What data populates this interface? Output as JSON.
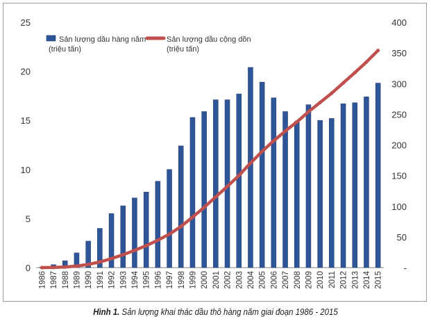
{
  "caption": {
    "label": "Hình 1.",
    "text": "Sản lượng khai thác dầu thô hàng năm giai đoạn 1986 - 2015"
  },
  "chart_data": {
    "type": "bar",
    "categories": [
      "1986",
      "1987",
      "1988",
      "1989",
      "1990",
      "1991",
      "1992",
      "1993",
      "1994",
      "1995",
      "1996",
      "1997",
      "1998",
      "1999",
      "2000",
      "2001",
      "2002",
      "2003",
      "2004",
      "2005",
      "2006",
      "2007",
      "2008",
      "2009",
      "2010",
      "2011",
      "2012",
      "2013",
      "2014",
      "2015"
    ],
    "series": [
      {
        "name": "Sản lượng dầu hàng năm",
        "unit": "(triệu tấn)",
        "type": "bar",
        "axis": "left",
        "color": "#2e5597",
        "values": [
          0.04,
          0.3,
          0.7,
          1.5,
          2.7,
          4.0,
          5.5,
          6.3,
          7.1,
          7.7,
          8.8,
          10.0,
          12.4,
          15.3,
          15.9,
          17.1,
          17.1,
          17.7,
          20.4,
          18.9,
          17.3,
          15.9,
          14.9,
          16.6,
          15.0,
          15.2,
          16.7,
          16.8,
          17.4,
          18.8
        ]
      },
      {
        "name": "Sản lượng  dầu cộng dồn",
        "unit": "(triệu tấn)",
        "type": "line",
        "axis": "right",
        "color": "#c0504d",
        "values": [
          0.04,
          0.3,
          1.0,
          2.5,
          5.2,
          9.2,
          14.7,
          21.0,
          28.1,
          35.8,
          44.6,
          54.6,
          67.0,
          82.3,
          98.2,
          115.3,
          132.4,
          150.1,
          170.5,
          189.4,
          206.7,
          222.6,
          237.5,
          254.1,
          269.1,
          284.3,
          301.0,
          317.8,
          335.2,
          354.0
        ]
      }
    ],
    "ylim_left": [
      0,
      25
    ],
    "yticks_left": [
      "0",
      "5",
      "10",
      "15",
      "20",
      "25"
    ],
    "ylim_right": [
      0,
      400
    ],
    "yticks_right": [
      "-",
      "50",
      "100",
      "150",
      "200",
      "250",
      "300",
      "350",
      "400"
    ],
    "grid": false,
    "legend_position": "top-left"
  }
}
